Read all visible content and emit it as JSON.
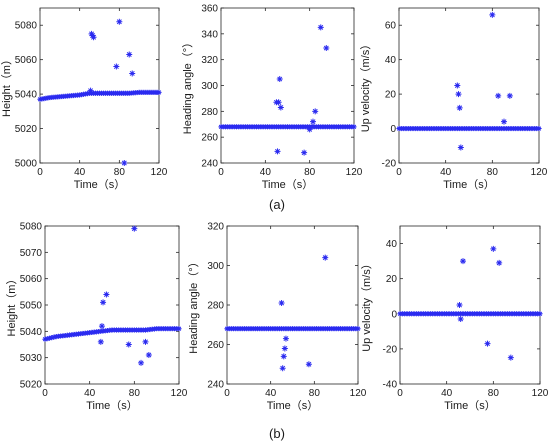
{
  "figure": {
    "label_a": "(a)",
    "label_b": "(b)"
  },
  "style": {
    "marker_color": "#2b2bf0",
    "axis_color": "#262626",
    "background": "#ffffff"
  },
  "chart_data": [
    {
      "type": "scatter",
      "title": "",
      "xlabel": "Time（s）",
      "ylabel": "Height（m）",
      "xlim": [
        0,
        120
      ],
      "ylim": [
        5000,
        5090
      ],
      "xticks": [
        0,
        40,
        80,
        120
      ],
      "yticks": [
        5000,
        5020,
        5040,
        5060,
        5080
      ],
      "marker": "asterisk",
      "baseline": [
        [
          0,
          5037
        ],
        [
          10,
          5038
        ],
        [
          20,
          5038.5
        ],
        [
          30,
          5039
        ],
        [
          40,
          5039.5
        ],
        [
          50,
          5040.5
        ],
        [
          60,
          5040.5
        ],
        [
          70,
          5040.5
        ],
        [
          80,
          5040.5
        ],
        [
          90,
          5040.5
        ],
        [
          100,
          5041
        ],
        [
          110,
          5041
        ],
        [
          120,
          5041
        ]
      ],
      "outliers": [
        [
          51,
          5042
        ],
        [
          52,
          5075
        ],
        [
          53,
          5074
        ],
        [
          54,
          5073
        ],
        [
          77,
          5056
        ],
        [
          80,
          5082
        ],
        [
          85,
          5000
        ],
        [
          90,
          5063
        ],
        [
          93,
          5052
        ]
      ]
    },
    {
      "type": "scatter",
      "title": "",
      "xlabel": "Time（s）",
      "ylabel": "Heading angle（°）",
      "xlim": [
        0,
        120
      ],
      "ylim": [
        240,
        360
      ],
      "xticks": [
        0,
        40,
        80,
        120
      ],
      "yticks": [
        240,
        260,
        280,
        300,
        320,
        340,
        360
      ],
      "marker": "asterisk",
      "baseline": [
        [
          0,
          268
        ],
        [
          120,
          268
        ]
      ],
      "outliers": [
        [
          50,
          287
        ],
        [
          51,
          249
        ],
        [
          52,
          287
        ],
        [
          53,
          305
        ],
        [
          54,
          283
        ],
        [
          75,
          248
        ],
        [
          80,
          266
        ],
        [
          83,
          272
        ],
        [
          85,
          280
        ],
        [
          90,
          345
        ],
        [
          95,
          329
        ]
      ]
    },
    {
      "type": "scatter",
      "title": "",
      "xlabel": "Time（s）",
      "ylabel": "Up velocity（m/s）",
      "xlim": [
        0,
        120
      ],
      "ylim": [
        -20,
        70
      ],
      "xticks": [
        0,
        40,
        80,
        120
      ],
      "yticks": [
        -20,
        0,
        20,
        40,
        60
      ],
      "marker": "asterisk",
      "baseline": [
        [
          0,
          0
        ],
        [
          120,
          0
        ]
      ],
      "outliers": [
        [
          50,
          25
        ],
        [
          51,
          20
        ],
        [
          52,
          12
        ],
        [
          53,
          -11
        ],
        [
          80,
          66
        ],
        [
          85,
          19
        ],
        [
          90,
          4
        ],
        [
          95,
          19
        ]
      ]
    },
    {
      "type": "scatter",
      "title": "",
      "xlabel": "Time（s）",
      "ylabel": "Height（m）",
      "xlim": [
        0,
        120
      ],
      "ylim": [
        5020,
        5080
      ],
      "xticks": [
        0,
        40,
        80,
        120
      ],
      "yticks": [
        5020,
        5030,
        5040,
        5050,
        5060,
        5070,
        5080
      ],
      "marker": "asterisk",
      "baseline": [
        [
          0,
          5037
        ],
        [
          10,
          5038
        ],
        [
          20,
          5038.5
        ],
        [
          30,
          5039
        ],
        [
          40,
          5039.5
        ],
        [
          50,
          5040
        ],
        [
          60,
          5040.5
        ],
        [
          70,
          5040.5
        ],
        [
          80,
          5040.5
        ],
        [
          90,
          5040.5
        ],
        [
          100,
          5041
        ],
        [
          110,
          5041
        ],
        [
          120,
          5041
        ]
      ],
      "outliers": [
        [
          50,
          5036
        ],
        [
          51,
          5042
        ],
        [
          52,
          5051
        ],
        [
          55,
          5054
        ],
        [
          75,
          5035
        ],
        [
          80,
          5079
        ],
        [
          86,
          5028
        ],
        [
          90,
          5036
        ],
        [
          93,
          5031
        ]
      ]
    },
    {
      "type": "scatter",
      "title": "",
      "xlabel": "Time（s）",
      "ylabel": "Heading angle（°）",
      "xlim": [
        0,
        120
      ],
      "ylim": [
        240,
        320
      ],
      "xticks": [
        0,
        40,
        80,
        120
      ],
      "yticks": [
        240,
        260,
        280,
        300,
        320
      ],
      "marker": "asterisk",
      "baseline": [
        [
          0,
          268
        ],
        [
          120,
          268
        ]
      ],
      "outliers": [
        [
          50,
          281
        ],
        [
          51,
          248
        ],
        [
          52,
          254
        ],
        [
          53,
          258
        ],
        [
          54,
          263
        ],
        [
          75,
          250
        ],
        [
          90,
          304
        ]
      ]
    },
    {
      "type": "scatter",
      "title": "",
      "xlabel": "Time（s）",
      "ylabel": "Up velocity（m/s）",
      "xlim": [
        0,
        120
      ],
      "ylim": [
        -40,
        50
      ],
      "xticks": [
        0,
        40,
        80,
        120
      ],
      "yticks": [
        -40,
        -20,
        0,
        20,
        40
      ],
      "marker": "asterisk",
      "baseline": [
        [
          0,
          0
        ],
        [
          120,
          0
        ]
      ],
      "outliers": [
        [
          51,
          5
        ],
        [
          52,
          -3
        ],
        [
          54,
          30
        ],
        [
          75,
          -17
        ],
        [
          80,
          37
        ],
        [
          85,
          29
        ],
        [
          95,
          -25
        ]
      ]
    }
  ]
}
